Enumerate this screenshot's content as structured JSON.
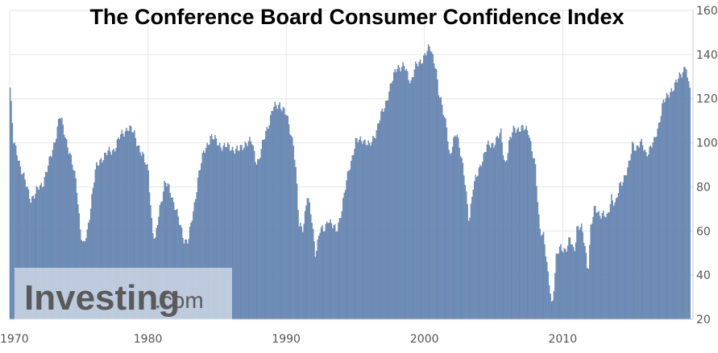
{
  "chart_data": {
    "type": "bar",
    "title": "The Conference Board Consumer Confidence Index",
    "xlabel": "",
    "ylabel": "",
    "x_range": [
      1970,
      2019.25
    ],
    "ylim": [
      20,
      160
    ],
    "x_ticks": [
      "1970",
      "1980",
      "1990",
      "2000",
      "2010"
    ],
    "y_ticks": [
      "20",
      "40",
      "60",
      "80",
      "100",
      "120",
      "140",
      "160"
    ],
    "grid": true,
    "legend": "none",
    "bar_color": "#6f8fbc",
    "bar_edge_color": "#4e6f9c",
    "watermark": {
      "main": "Investing",
      "sub": ".com"
    },
    "anchors": [
      [
        1970.0,
        125
      ],
      [
        1970.25,
        100
      ],
      [
        1970.5,
        96
      ],
      [
        1970.8,
        88
      ],
      [
        1971.2,
        80
      ],
      [
        1971.5,
        75
      ],
      [
        1971.8,
        76
      ],
      [
        1972.1,
        80
      ],
      [
        1972.4,
        82
      ],
      [
        1972.7,
        88
      ],
      [
        1973.0,
        95
      ],
      [
        1973.3,
        103
      ],
      [
        1973.6,
        112
      ],
      [
        1973.9,
        106
      ],
      [
        1974.2,
        98
      ],
      [
        1974.5,
        90
      ],
      [
        1974.8,
        82
      ],
      [
        1975.1,
        60
      ],
      [
        1975.3,
        52
      ],
      [
        1975.6,
        60
      ],
      [
        1975.9,
        75
      ],
      [
        1976.2,
        88
      ],
      [
        1976.6,
        93
      ],
      [
        1977.0,
        95
      ],
      [
        1977.5,
        97
      ],
      [
        1978.0,
        103
      ],
      [
        1978.5,
        107
      ],
      [
        1979.0,
        104
      ],
      [
        1979.5,
        95
      ],
      [
        1980.0,
        88
      ],
      [
        1980.3,
        60
      ],
      [
        1980.5,
        55
      ],
      [
        1980.8,
        70
      ],
      [
        1981.2,
        82
      ],
      [
        1981.6,
        78
      ],
      [
        1982.0,
        70
      ],
      [
        1982.3,
        62
      ],
      [
        1982.6,
        56
      ],
      [
        1982.9,
        56
      ],
      [
        1983.3,
        70
      ],
      [
        1983.6,
        85
      ],
      [
        1984.0,
        95
      ],
      [
        1984.5,
        103
      ],
      [
        1985.0,
        100
      ],
      [
        1985.5,
        98
      ],
      [
        1986.0,
        98
      ],
      [
        1986.5,
        96
      ],
      [
        1987.0,
        100
      ],
      [
        1987.5,
        100
      ],
      [
        1987.8,
        92
      ],
      [
        1988.0,
        92
      ],
      [
        1988.5,
        105
      ],
      [
        1989.0,
        115
      ],
      [
        1989.5,
        118
      ],
      [
        1990.0,
        112
      ],
      [
        1990.5,
        100
      ],
      [
        1990.7,
        85
      ],
      [
        1990.9,
        62
      ],
      [
        1991.2,
        62
      ],
      [
        1991.5,
        76
      ],
      [
        1991.8,
        66
      ],
      [
        1992.1,
        50
      ],
      [
        1992.4,
        60
      ],
      [
        1992.7,
        60
      ],
      [
        1993.0,
        66
      ],
      [
        1993.3,
        62
      ],
      [
        1993.6,
        60
      ],
      [
        1994.0,
        70
      ],
      [
        1994.5,
        88
      ],
      [
        1995.0,
        100
      ],
      [
        1995.5,
        102
      ],
      [
        1996.0,
        98
      ],
      [
        1996.5,
        106
      ],
      [
        1997.0,
        115
      ],
      [
        1997.5,
        125
      ],
      [
        1998.0,
        135
      ],
      [
        1998.5,
        134
      ],
      [
        1999.0,
        128
      ],
      [
        1999.3,
        134
      ],
      [
        1999.6,
        136
      ],
      [
        2000.0,
        140
      ],
      [
        2000.4,
        143
      ],
      [
        2000.8,
        135
      ],
      [
        2001.0,
        122
      ],
      [
        2001.3,
        115
      ],
      [
        2001.6,
        108
      ],
      [
        2001.8,
        92
      ],
      [
        2002.0,
        98
      ],
      [
        2002.3,
        106
      ],
      [
        2002.6,
        95
      ],
      [
        2002.9,
        82
      ],
      [
        2003.2,
        65
      ],
      [
        2003.5,
        80
      ],
      [
        2003.8,
        85
      ],
      [
        2004.1,
        92
      ],
      [
        2004.5,
        98
      ],
      [
        2005.0,
        100
      ],
      [
        2005.5,
        104
      ],
      [
        2005.8,
        90
      ],
      [
        2006.1,
        100
      ],
      [
        2006.5,
        107
      ],
      [
        2007.0,
        106
      ],
      [
        2007.5,
        106
      ],
      [
        2007.8,
        95
      ],
      [
        2008.0,
        88
      ],
      [
        2008.3,
        62
      ],
      [
        2008.6,
        58
      ],
      [
        2008.9,
        40
      ],
      [
        2009.1,
        32
      ],
      [
        2009.2,
        25
      ],
      [
        2009.5,
        48
      ],
      [
        2009.8,
        52
      ],
      [
        2010.2,
        52
      ],
      [
        2010.5,
        56
      ],
      [
        2010.8,
        50
      ],
      [
        2011.0,
        62
      ],
      [
        2011.3,
        62
      ],
      [
        2011.6,
        52
      ],
      [
        2011.8,
        42
      ],
      [
        2012.0,
        62
      ],
      [
        2012.3,
        70
      ],
      [
        2012.6,
        68
      ],
      [
        2012.9,
        68
      ],
      [
        2013.2,
        65
      ],
      [
        2013.5,
        76
      ],
      [
        2013.8,
        72
      ],
      [
        2014.1,
        80
      ],
      [
        2014.5,
        86
      ],
      [
        2014.8,
        90
      ],
      [
        2015.0,
        99
      ],
      [
        2015.3,
        98
      ],
      [
        2015.6,
        100
      ],
      [
        2016.0,
        95
      ],
      [
        2016.3,
        98
      ],
      [
        2016.6,
        100
      ],
      [
        2016.9,
        108
      ],
      [
        2017.2,
        118
      ],
      [
        2017.5,
        120
      ],
      [
        2017.8,
        124
      ],
      [
        2018.2,
        127
      ],
      [
        2018.6,
        132
      ],
      [
        2018.9,
        136
      ],
      [
        2019.0,
        128
      ],
      [
        2019.1,
        125
      ],
      [
        2019.25,
        125
      ]
    ]
  }
}
